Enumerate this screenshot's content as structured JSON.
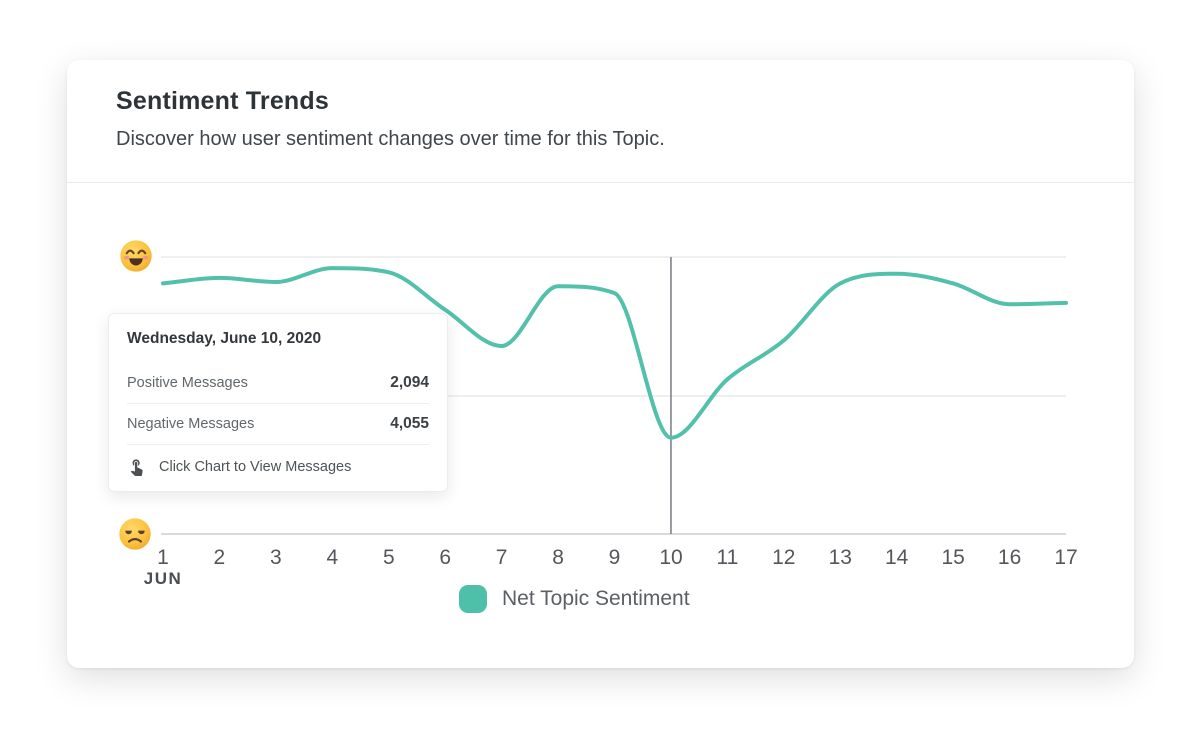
{
  "header": {
    "title": "Sentiment Trends",
    "subtitle": "Discover how user sentiment changes over time for this Topic."
  },
  "chart_data": {
    "type": "line",
    "x": [
      1,
      2,
      3,
      4,
      5,
      6,
      7,
      8,
      9,
      10,
      11,
      12,
      13,
      14,
      15,
      16,
      17
    ],
    "x_month_label": "JUN",
    "series": [
      {
        "name": "Net Topic Sentiment",
        "color": "#52c0ab",
        "values": [
          0.81,
          0.85,
          0.82,
          0.92,
          0.89,
          0.62,
          0.36,
          0.79,
          0.74,
          -0.3,
          0.12,
          0.4,
          0.81,
          0.88,
          0.81,
          0.66,
          0.67
        ]
      }
    ],
    "ylim": [
      -1,
      1
    ],
    "y_axis": {
      "top_icon": "happy-face-emoji",
      "bottom_icon": "sad-face-emoji"
    },
    "gridlines_y": [
      1,
      0,
      -1
    ],
    "grid": "horizontal-only",
    "crosshair_day": 10,
    "legend": {
      "label": "Net Topic Sentiment",
      "position": "bottom-center",
      "swatch_color": "#4ec0aa"
    }
  },
  "tooltip": {
    "date_label": "Wednesday, June 10, 2020",
    "rows": [
      {
        "label": "Positive Messages",
        "value": "2,094"
      },
      {
        "label": "Negative Messages",
        "value": "4,055"
      }
    ],
    "footer_icon": "touch-tap-icon",
    "footer_label": "Click Chart to View Messages"
  },
  "colors": {
    "line": "#52c0ab",
    "crosshair": "#6d7276",
    "gridline": "#e9ebec",
    "axis_line": "#d8dadc",
    "emoji_yellow": "#fbc13c"
  }
}
